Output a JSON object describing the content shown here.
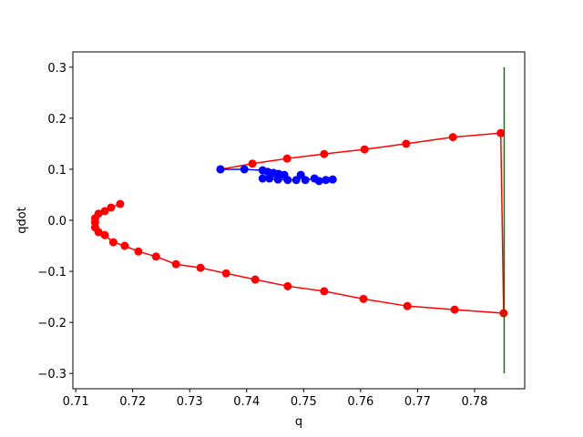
{
  "chart_data": {
    "type": "line",
    "xlabel": "q",
    "ylabel": "qdot",
    "xlim": [
      0.7095,
      0.7888
    ],
    "ylim": [
      -0.33,
      0.33
    ],
    "xticks": [
      0.71,
      0.72,
      0.73,
      0.74,
      0.75,
      0.76,
      0.77,
      0.78
    ],
    "yticks": [
      {
        "value": -0.3,
        "label": "−0.3"
      },
      {
        "value": -0.2,
        "label": "−0.2"
      },
      {
        "value": -0.1,
        "label": "−0.1"
      },
      {
        "value": 0,
        "label": "0.0"
      },
      0.1,
      0.2,
      0.3
    ],
    "series": [
      {
        "color": "#ff0000",
        "marker": true,
        "x": [
          0.7354,
          0.741,
          0.7471,
          0.7536,
          0.7607,
          0.768,
          0.7762,
          0.7846,
          0.7851,
          0.7765,
          0.7682,
          0.7605,
          0.7536,
          0.7472,
          0.7415,
          0.7364,
          0.7319,
          0.7276,
          0.7241,
          0.721,
          0.7186,
          0.7166,
          0.7151,
          0.714,
          0.7134,
          0.7134,
          0.7134,
          0.714,
          0.7151,
          0.7162,
          0.7178
        ],
        "values": [
          0.1,
          0.111,
          0.121,
          0.13,
          0.139,
          0.15,
          0.163,
          0.171,
          -0.182,
          -0.175,
          -0.168,
          -0.154,
          -0.139,
          -0.129,
          -0.116,
          -0.104,
          -0.093,
          -0.086,
          -0.071,
          -0.061,
          -0.05,
          -0.043,
          -0.029,
          -0.023,
          -0.014,
          -0.004,
          0.004,
          0.013,
          0.018,
          0.025,
          0.032
        ]
      },
      {
        "color": "#008000",
        "marker": false,
        "x": [
          0.7852,
          0.7852
        ],
        "values": [
          -0.3,
          0.3
        ]
      },
      {
        "color": "#0000ff",
        "marker": true,
        "x": [
          0.7354,
          0.7396,
          0.7428,
          0.7437,
          0.7447,
          0.7456,
          0.7466,
          0.7428,
          0.744,
          0.7455,
          0.7472,
          0.7487,
          0.7495,
          0.7503,
          0.7519,
          0.7527,
          0.7539,
          0.7551
        ],
        "values": [
          0.1,
          0.1,
          0.098,
          0.095,
          0.093,
          0.091,
          0.089,
          0.082,
          0.082,
          0.08,
          0.079,
          0.079,
          0.089,
          0.079,
          0.082,
          0.077,
          0.079,
          0.08
        ]
      }
    ]
  }
}
